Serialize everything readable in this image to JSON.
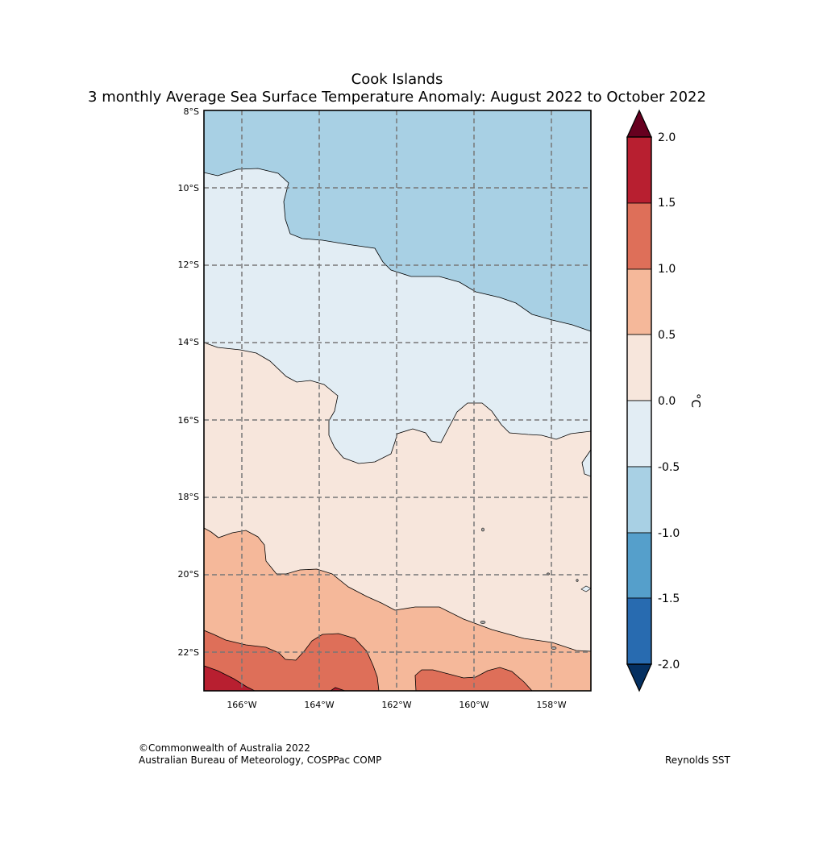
{
  "title": {
    "line1": "Cook Islands",
    "line2": "3 monthly Average Sea Surface Temperature Anomaly: August 2022 to October 2022"
  },
  "map": {
    "lat_labels": [
      "8°S",
      "10°S",
      "12°S",
      "14°S",
      "16°S",
      "18°S",
      "20°S",
      "22°S"
    ],
    "lon_labels": [
      "166°W",
      "164°W",
      "162°W",
      "160°W",
      "158°W"
    ],
    "anomaly_classes_c": [
      "-1.0 to -0.5",
      "-0.5 to 0.0",
      "0.0 to 0.5",
      "0.5 to 1.0",
      "1.0 to 1.5",
      "1.5 to 2.0"
    ]
  },
  "colorbar": {
    "unit": "°C",
    "ticks": [
      "2.0",
      "1.5",
      "1.0",
      "0.5",
      "0.0",
      "-0.5",
      "-1.0",
      "-1.5",
      "-2.0"
    ],
    "colors": [
      "#67001f",
      "#b2182b",
      "#d6604d",
      "#f4a582",
      "#fddbc7",
      "#f7f7f7",
      "#d1e5f0",
      "#92c5de",
      "#4393c3",
      "#2166ac",
      "#053061"
    ]
  },
  "footer": {
    "copyright": "©Commonwealth of Australia 2022",
    "agency": "Australian Bureau of Meteorology, COSPPac COMP",
    "source": "Reynolds SST"
  }
}
